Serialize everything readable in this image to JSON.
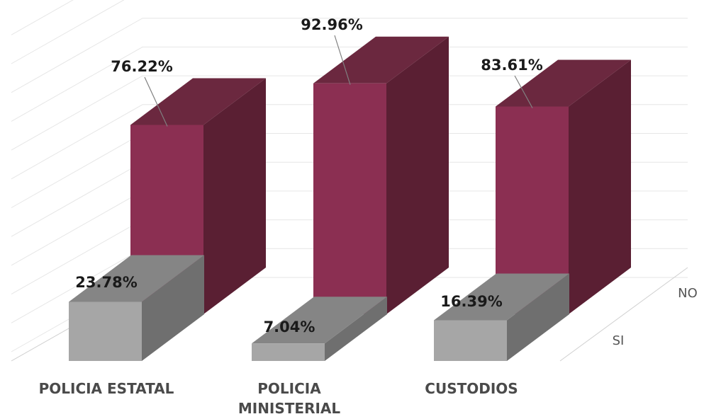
{
  "chart_data": {
    "type": "bar",
    "categories": [
      "POLICIA ESTATAL",
      "POLICIA MINISTERIAL",
      "CUSTODIOS"
    ],
    "depth_categories": [
      "SI",
      "NO"
    ],
    "series": [
      {
        "name": "SI",
        "values": [
          23.78,
          7.04,
          16.39
        ],
        "labels": [
          "23.78%",
          "7.04%",
          "16.39%"
        ],
        "color": "#a6a6a6"
      },
      {
        "name": "NO",
        "values": [
          76.22,
          92.96,
          83.61
        ],
        "labels": [
          "76.22%",
          "92.96%",
          "83.61%"
        ],
        "color": "#8b2f52"
      }
    ],
    "category_label_lines": [
      [
        "POLICIA ESTATAL"
      ],
      [
        "POLICIA",
        "MINISTERIAL"
      ],
      [
        "CUSTODIOS"
      ]
    ],
    "ylim": [
      0,
      100
    ],
    "grid": true,
    "legend": "none",
    "title": "",
    "xlabel": "",
    "ylabel": ""
  },
  "colors": {
    "no_front": "#8b2f52",
    "no_side": "#5a1f33",
    "no_top": "#6b283f",
    "si_front": "#a6a6a6",
    "si_side": "#6f6f6f",
    "si_top": "#858585"
  }
}
